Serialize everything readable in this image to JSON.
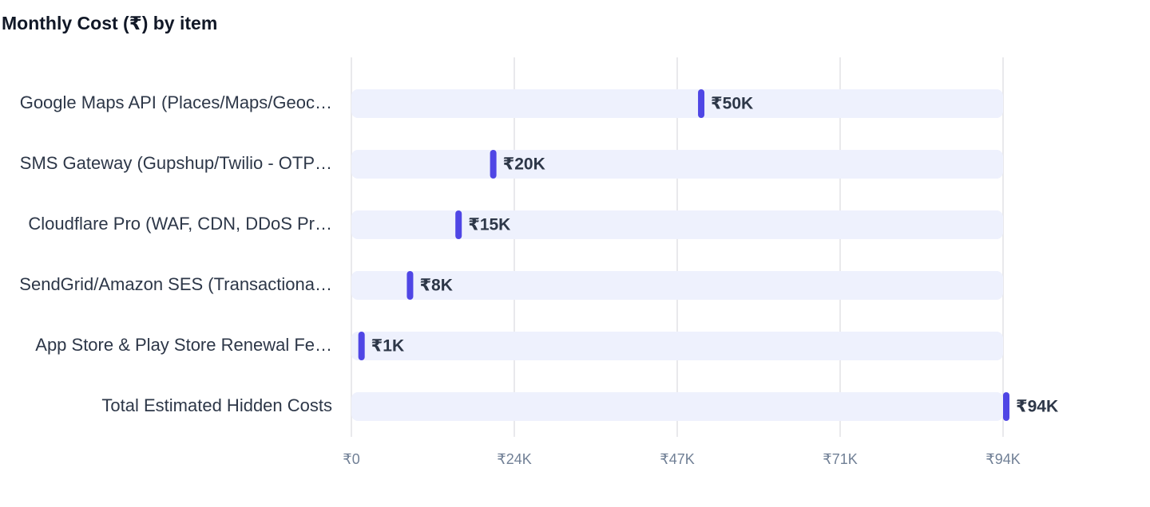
{
  "chart_data": {
    "type": "bar",
    "orientation": "horizontal",
    "title": "Monthly Cost (₹) by item",
    "categories": [
      "Google Maps API (Places/Maps/Geoc…",
      "SMS Gateway (Gupshup/Twilio - OTP…",
      "Cloudflare Pro (WAF, CDN, DDoS Pr…",
      "SendGrid/Amazon SES (Transactiona…",
      "App Store & Play Store Renewal Fe…",
      "Total Estimated Hidden Costs"
    ],
    "values": [
      50000,
      20000,
      15000,
      8000,
      1000,
      94000
    ],
    "value_labels": [
      "₹50K",
      "₹20K",
      "₹15K",
      "₹8K",
      "₹1K",
      "₹94K"
    ],
    "color": "#4f46e5",
    "xlim": [
      0,
      94000
    ],
    "xticks": [
      {
        "value": 0,
        "label": "₹0"
      },
      {
        "value": 23500,
        "label": "₹24K"
      },
      {
        "value": 47000,
        "label": "₹47K"
      },
      {
        "value": 70500,
        "label": "₹71K"
      },
      {
        "value": 94000,
        "label": "₹94K"
      }
    ],
    "grid": true
  }
}
